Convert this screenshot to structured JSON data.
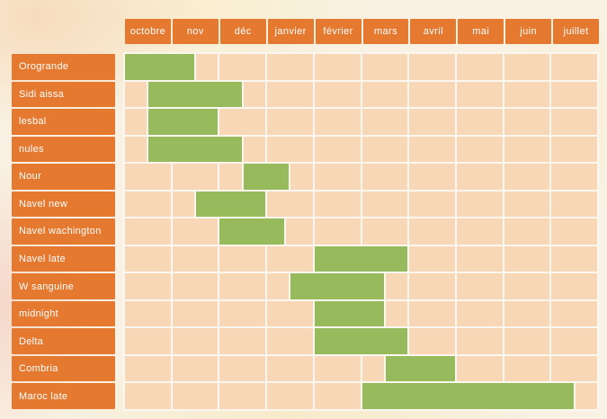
{
  "chart_data": {
    "type": "bar",
    "variant": "gantt-seasonal-availability",
    "orientation": "horizontal",
    "months": [
      "octobre",
      "nov",
      "déc",
      "janvier",
      "février",
      "mars",
      "avril",
      "mai",
      "juin",
      "juillet"
    ],
    "month_index_range": [
      0,
      10
    ],
    "grid": true,
    "legend": "none",
    "rows": [
      {
        "label": "Orogrande",
        "start": 0,
        "end": 1.5
      },
      {
        "label": "Sidi aissa",
        "start": 0.5,
        "end": 2.5
      },
      {
        "label": "lesbal",
        "start": 0.5,
        "end": 2
      },
      {
        "label": "nules",
        "start": 0.5,
        "end": 2.5
      },
      {
        "label": "Nour",
        "start": 2.5,
        "end": 3.5
      },
      {
        "label": "Navel new",
        "start": 1.5,
        "end": 3
      },
      {
        "label": "Navel wachington",
        "start": 2,
        "end": 3.4
      },
      {
        "label": "Navel late",
        "start": 4,
        "end": 6
      },
      {
        "label": "W sanguine",
        "start": 3.5,
        "end": 5.5
      },
      {
        "label": "midnight",
        "start": 4,
        "end": 5.5
      },
      {
        "label": "Delta",
        "start": 4,
        "end": 6
      },
      {
        "label": "Combria",
        "start": 5.5,
        "end": 7
      },
      {
        "label": "Maroc late",
        "start": 5,
        "end": 9.5
      }
    ]
  },
  "colors": {
    "header_orange": "#E4792F",
    "bar_green": "#96BA5C",
    "cell_peach": "#F8D7B6",
    "grid_line": "#FAF7F0",
    "page_background": "#F9F2E4",
    "text_white": "#FFFFFF"
  }
}
